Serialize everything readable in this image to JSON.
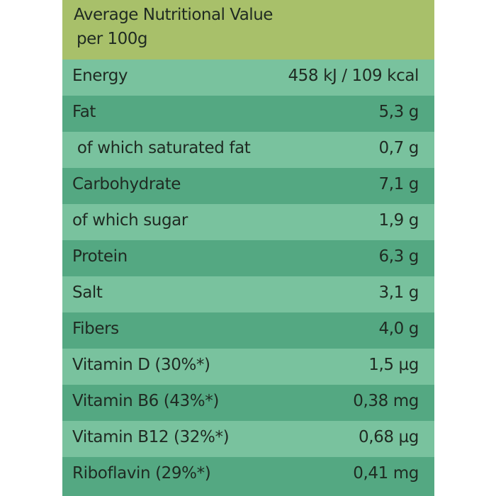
{
  "header": {
    "line1": "Average Nutritional Value",
    "line2": "per 100g"
  },
  "rows": [
    {
      "label": "Energy",
      "value": "458 kJ / 109 kcal"
    },
    {
      "label": "Fat",
      "value": "5,3 g"
    },
    {
      "label": " of which saturated fat",
      "value": "0,7 g"
    },
    {
      "label": "Carbohydrate",
      "value": "7,1 g"
    },
    {
      "label": "of which sugar",
      "value": "1,9 g"
    },
    {
      "label": "Protein",
      "value": "6,3 g"
    },
    {
      "label": "Salt",
      "value": "3,1 g"
    },
    {
      "label": "Fibers",
      "value": "4,0 g"
    },
    {
      "label": "Vitamin D (30%*)",
      "value": "1,5 µg"
    },
    {
      "label": "Vitamin B6 (43%*)",
      "value": "0,38 mg"
    },
    {
      "label": "Vitamin B12 (32%*)",
      "value": "0,68 µg"
    },
    {
      "label": "Riboflavin (29%*)",
      "value": "0,41 mg"
    }
  ],
  "colors": {
    "header_bg": "#a8c06a",
    "row_light": "#79c29e",
    "row_dark": "#54a882",
    "text": "#1f2a22"
  }
}
